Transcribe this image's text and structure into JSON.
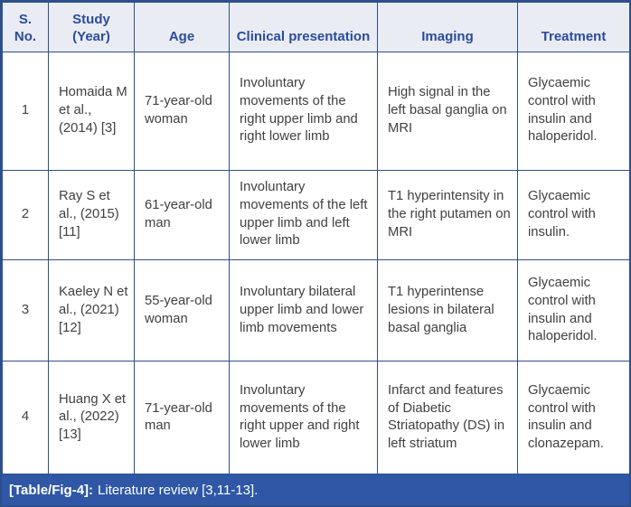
{
  "colors": {
    "border": "#2d4f8c",
    "header_bg": "#eaecf4",
    "header_text": "#2b4c9c",
    "body_text": "#414042",
    "body_bg": "#ffffff",
    "caption_bg": "#2f57a6",
    "caption_text": "#ffffff"
  },
  "table": {
    "columns": [
      "S. No.",
      "Study (Year)",
      "Age",
      "Clinical presentation",
      "Imaging",
      "Treatment"
    ],
    "rows": [
      {
        "cells": [
          "1",
          "Homaida M et al., (2014) [3]",
          "71-year-old woman",
          "Involuntary movements of the right upper limb and right lower limb",
          "High signal in the left basal ganglia on MRI",
          "Glycaemic control with insulin and haloperidol."
        ]
      },
      {
        "cells": [
          "2",
          "Ray S et al., (2015) [11]",
          "61-year-old man",
          "Involuntary movements of the left upper limb and left lower limb",
          "T1 hyperintensity in the right putamen on MRI",
          "Glycaemic control with insulin."
        ]
      },
      {
        "cells": [
          "3",
          "Kaeley N et al., (2021) [12]",
          "55-year-old woman",
          "Involuntary bilateral upper limb and lower limb movements",
          "T1 hyperintense lesions in bilateral basal ganglia",
          "Glycaemic control with insulin and haloperidol."
        ]
      },
      {
        "cells": [
          "4",
          "Huang X et al., (2022) [13]",
          "71-year-old man",
          "Involuntary movements of the right upper and right lower limb",
          "Infarct and features of Diabetic Striatopathy (DS) in left striatum",
          "Glycaemic control with insulin and clonazepam."
        ]
      }
    ]
  },
  "caption": {
    "label": "[Table/Fig-4]:",
    "text": "Literature review [3,11-13]."
  }
}
